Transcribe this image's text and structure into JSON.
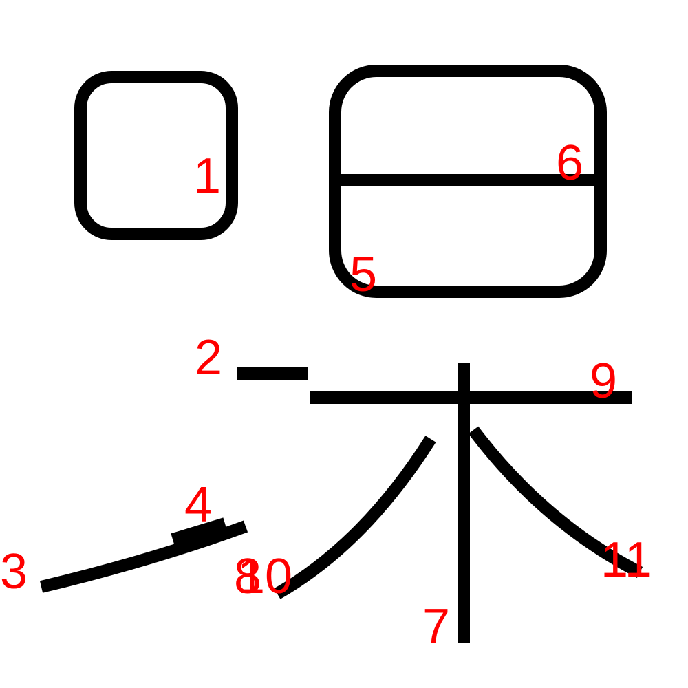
{
  "figure": {
    "description_type": "stroke-order diagram",
    "stroke_color": "#000000",
    "number_color": "#ff0000",
    "background": "#ffffff"
  },
  "labels": {
    "n1": "1",
    "n2": "2",
    "n3": "3",
    "n4": "4",
    "n5": "5",
    "n6": "6",
    "n7": "7",
    "n8": "8",
    "n9": "9",
    "n10": "10",
    "n11": "11"
  }
}
